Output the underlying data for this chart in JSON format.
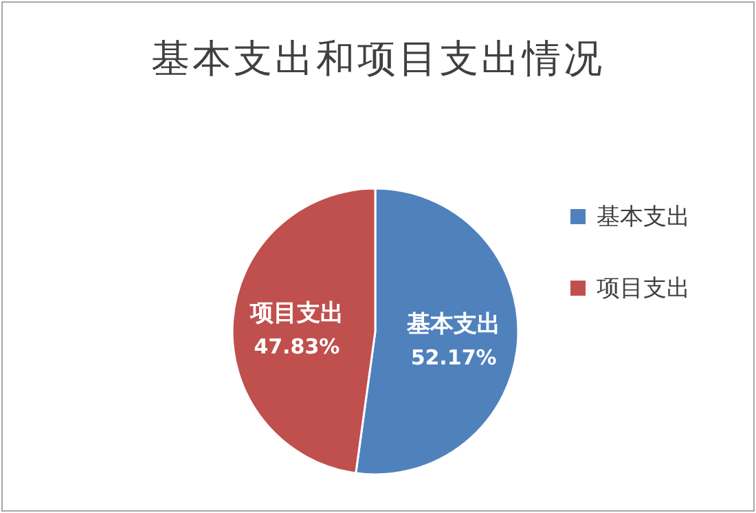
{
  "chart_data": {
    "type": "pie",
    "title": "基本支出和项目支出情况",
    "categories": [
      "基本支出",
      "项目支出"
    ],
    "values": [
      52.17,
      47.83
    ],
    "colors": [
      "#4f81bd",
      "#c0504d"
    ],
    "value_labels": [
      "52.17%",
      "47.83%"
    ],
    "legend": "right"
  }
}
